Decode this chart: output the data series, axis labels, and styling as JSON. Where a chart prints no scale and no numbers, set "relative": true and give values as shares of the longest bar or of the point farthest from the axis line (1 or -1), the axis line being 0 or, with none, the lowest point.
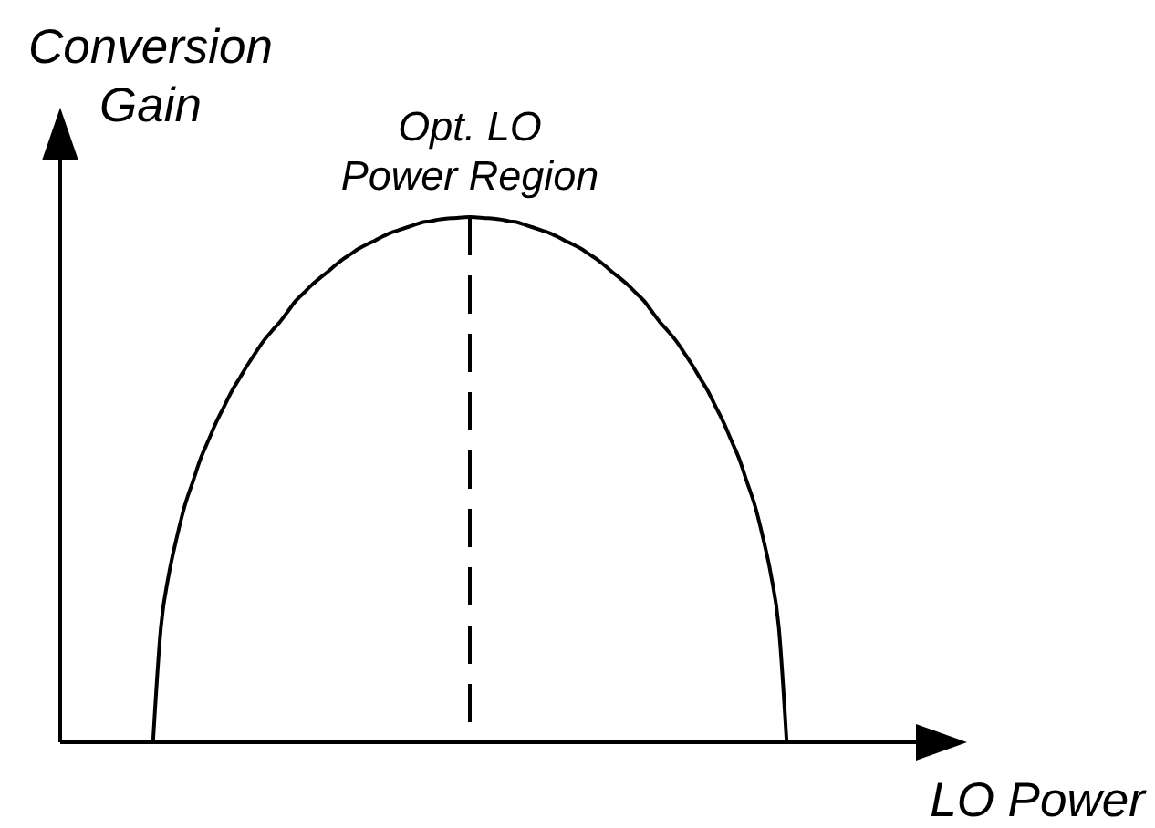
{
  "chart_data": {
    "type": "line",
    "relative": true,
    "xlabel": "LO Power",
    "ylabel": "Conversion Gain",
    "grid": false,
    "categories": [
      null,
      null,
      null,
      null,
      null,
      null,
      null,
      null,
      null,
      null,
      null,
      null,
      null,
      null,
      null,
      null,
      null,
      null,
      null,
      null,
      null,
      null,
      null,
      null,
      null,
      null,
      null,
      null,
      null,
      null,
      null,
      null,
      null,
      null,
      null,
      null,
      null,
      null,
      null,
      null,
      null,
      null,
      null,
      null,
      null,
      null,
      null,
      null,
      null,
      null,
      null,
      null,
      null,
      null,
      null,
      null,
      null,
      null,
      null,
      null,
      null,
      null,
      null,
      null,
      null,
      null,
      null,
      null,
      null,
      null,
      null,
      null,
      null,
      null,
      null,
      null,
      null,
      null,
      null,
      null,
      null
    ],
    "series": [
      {
        "color": "#000000",
        "values": [
          0,
          0.22,
          0.32,
          0.39,
          0.45,
          0.495,
          0.54,
          0.575,
          0.61,
          0.64,
          0.67,
          0.695,
          0.72,
          0.743,
          0.765,
          0.783,
          0.8,
          0.82,
          0.84,
          0.855,
          0.87,
          0.883,
          0.895,
          0.908,
          0.92,
          0.93,
          0.94,
          0.948,
          0.955,
          0.963,
          0.97,
          0.975,
          0.98,
          0.985,
          0.99,
          0.992,
          0.995,
          0.997,
          0.998,
          0.999,
          1,
          0.999,
          0.998,
          0.997,
          0.995,
          0.992,
          0.99,
          0.985,
          0.98,
          0.975,
          0.97,
          0.963,
          0.955,
          0.948,
          0.94,
          0.93,
          0.92,
          0.908,
          0.895,
          0.883,
          0.87,
          0.855,
          0.84,
          0.82,
          0.8,
          0.783,
          0.765,
          0.743,
          0.72,
          0.695,
          0.67,
          0.64,
          0.61,
          0.575,
          0.54,
          0.495,
          0.45,
          0.39,
          0.32,
          0.22,
          0
        ]
      }
    ],
    "annotations": [
      {
        "text": "Opt. LO Power Region",
        "y": 1
      }
    ]
  }
}
